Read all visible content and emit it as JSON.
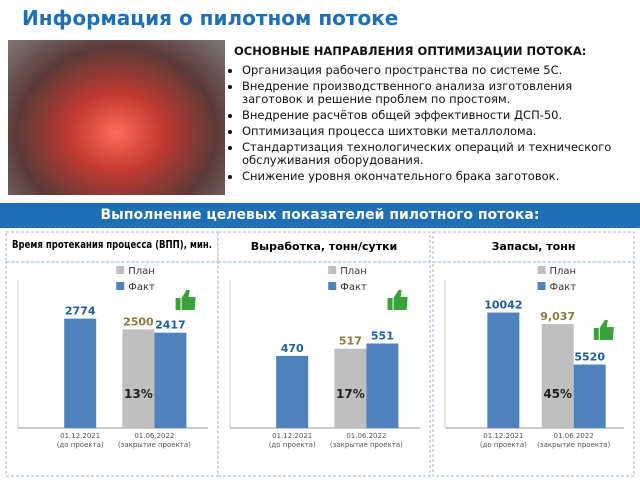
{
  "title": "Информация о пилотном потоке",
  "directions": {
    "heading": "ОСНОВНЫЕ НАПРАВЛЕНИЯ ОПТИМИЗАЦИИ ПОТОКА:",
    "items": [
      "Организация рабочего пространства по системе 5С.",
      "Внедрение производственного анализа изготовления заготовок и решение проблем по простоям.",
      "Внедрение расчётов общей эффективности ДСП-50.",
      "Оптимизация процесса шихтовки металлолома.",
      "Стандартизация технологических операций и технического обслуживания оборудования.",
      "Снижение уровня окончательного брака заготовок."
    ]
  },
  "banner": "Выполнение целевых показателей пилотного потока:",
  "chart_data": [
    {
      "type": "bar",
      "title": "Время протекания процесса (ВПП), мин.",
      "categories": [
        "01.12.2021",
        "01.06.2022"
      ],
      "category_notes": [
        "(до проекта)",
        "(закрытие проекта)"
      ],
      "series": [
        {
          "name": "План",
          "color": "#bfbfbf",
          "values": [
            null,
            2500
          ]
        },
        {
          "name": "Факт",
          "color": "#4f81bd",
          "values": [
            2774,
            2417
          ]
        }
      ],
      "ylim": [
        0,
        3500
      ],
      "annotation": "13%"
    },
    {
      "type": "bar",
      "title": "Выработка, тонн/сутки",
      "categories": [
        "01.12.2021",
        "01.06.2022"
      ],
      "category_notes": [
        "(до проекта)",
        "(закрытие проекта)"
      ],
      "series": [
        {
          "name": "План",
          "color": "#bfbfbf",
          "values": [
            null,
            517
          ]
        },
        {
          "name": "Факт",
          "color": "#4f81bd",
          "values": [
            470,
            551
          ]
        }
      ],
      "ylim": [
        0,
        900
      ],
      "annotation": "17%"
    },
    {
      "type": "bar",
      "title": "Запасы, тонн",
      "categories": [
        "01.12.2021",
        "01.06.2022"
      ],
      "category_notes": [
        "(до проекта)",
        "(закрытие проекта)"
      ],
      "series": [
        {
          "name": "План",
          "color": "#bfbfbf",
          "values": [
            null,
            9037
          ],
          "value_labels": [
            null,
            "9,037"
          ]
        },
        {
          "name": "Факт",
          "color": "#4f81bd",
          "values": [
            10042,
            5520
          ]
        }
      ],
      "ylim": [
        0,
        12000
      ],
      "annotation": "45%"
    }
  ]
}
